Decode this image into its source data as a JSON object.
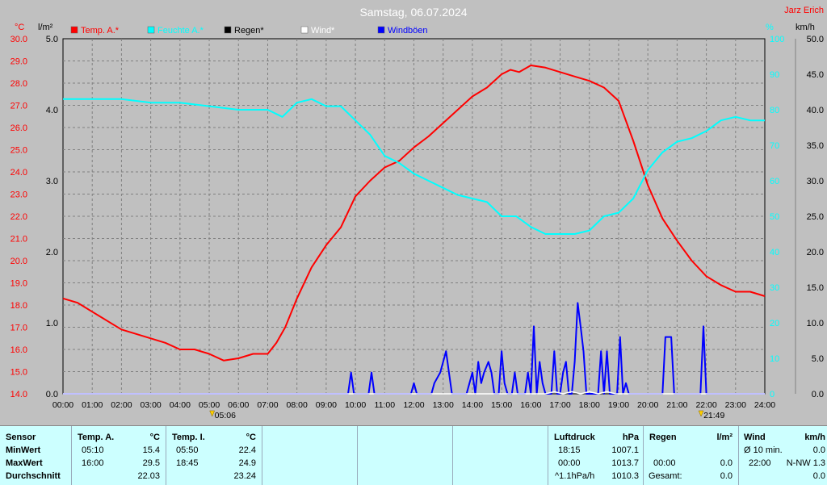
{
  "chart_data": {
    "type": "line",
    "title": "Samstag, 06.07.2024",
    "station": "Jarz Erich",
    "legend": [
      {
        "name": "Temp. A.*",
        "color": "#ff0000"
      },
      {
        "name": "Feuchte A.*",
        "color": "#00ffff"
      },
      {
        "name": "Regen*",
        "color": "#000000"
      },
      {
        "name": "Wind*",
        "color": "#ffffff"
      },
      {
        "name": "Windböen",
        "color": "#0000ff"
      }
    ],
    "axes": {
      "temp": {
        "unit": "°C",
        "min": 14.0,
        "max": 30.0,
        "ticks": [
          "14.0",
          "15.0",
          "16.0",
          "17.0",
          "18.0",
          "19.0",
          "20.0",
          "21.0",
          "22.0",
          "23.0",
          "24.0",
          "25.0",
          "26.0",
          "27.0",
          "28.0",
          "29.0",
          "30.0"
        ]
      },
      "rain": {
        "unit": "l/m²",
        "min": 0.0,
        "max": 5.0,
        "ticks": [
          "0.0",
          "1.0",
          "2.0",
          "3.0",
          "4.0",
          "5.0"
        ]
      },
      "humidity": {
        "unit": "%",
        "min": 0,
        "max": 100,
        "ticks": [
          "0",
          "10",
          "20",
          "30",
          "40",
          "50",
          "60",
          "70",
          "80",
          "90",
          "100"
        ]
      },
      "wind": {
        "unit": "km/h",
        "min": 0.0,
        "max": 50.0,
        "ticks": [
          "0.0",
          "5.0",
          "10.0",
          "15.0",
          "20.0",
          "25.0",
          "30.0",
          "35.0",
          "40.0",
          "45.0",
          "50.0"
        ]
      },
      "time_ticks": [
        "00:00",
        "01:00",
        "02:00",
        "03:00",
        "04:00",
        "05:00",
        "06:00",
        "07:00",
        "08:00",
        "09:00",
        "10:00",
        "11:00",
        "12:00",
        "13:00",
        "14:00",
        "15:00",
        "16:00",
        "17:00",
        "18:00",
        "19:00",
        "20:00",
        "21:00",
        "22:00",
        "23:00",
        "24:00"
      ]
    },
    "sun_markers": [
      {
        "label": "05:06",
        "time": 5.1
      },
      {
        "label": "21:49",
        "time": 21.82
      }
    ],
    "series": [
      {
        "name": "Temp. A.*",
        "color": "#ff0000",
        "axis": "temp",
        "x": [
          0,
          0.5,
          1,
          1.5,
          2,
          2.5,
          3,
          3.5,
          4,
          4.5,
          5,
          5.5,
          6,
          6.5,
          7,
          7.3,
          7.6,
          8,
          8.5,
          9,
          9.5,
          10,
          10.5,
          11,
          11.5,
          12,
          12.5,
          13,
          13.5,
          14,
          14.5,
          15,
          15.3,
          15.6,
          16,
          16.5,
          17,
          17.5,
          18,
          18.5,
          19,
          19.5,
          20,
          20.5,
          21,
          21.5,
          22,
          22.5,
          23,
          23.5,
          24
        ],
        "values": [
          18.3,
          18.1,
          17.7,
          17.3,
          16.9,
          16.7,
          16.5,
          16.3,
          16.0,
          16.0,
          15.8,
          15.5,
          15.6,
          15.8,
          15.8,
          16.3,
          17.0,
          18.3,
          19.7,
          20.7,
          21.5,
          22.9,
          23.6,
          24.2,
          24.5,
          25.1,
          25.6,
          26.2,
          26.8,
          27.4,
          27.8,
          28.4,
          28.6,
          28.5,
          28.8,
          28.7,
          28.5,
          28.3,
          28.1,
          27.8,
          27.2,
          25.4,
          23.4,
          21.9,
          20.9,
          20.0,
          19.3,
          18.9,
          18.6,
          18.6,
          18.4
        ]
      },
      {
        "name": "Feuchte A.*",
        "color": "#00ffff",
        "axis": "humidity",
        "x": [
          0,
          1,
          2,
          3,
          4,
          5,
          6,
          7,
          7.5,
          8,
          8.5,
          9,
          9.5,
          10,
          10.5,
          11,
          11.5,
          12,
          12.5,
          13,
          13.5,
          14,
          14.5,
          15,
          15.5,
          16,
          16.5,
          17,
          17.5,
          18,
          18.5,
          19,
          19.5,
          20,
          20.5,
          21,
          21.5,
          22,
          22.5,
          23,
          23.5,
          24
        ],
        "values": [
          83,
          83,
          83,
          82,
          82,
          81,
          80,
          80,
          78,
          82,
          83,
          81,
          81,
          77,
          73,
          67,
          65,
          62,
          60,
          58,
          56,
          55,
          54,
          50,
          50,
          47,
          45,
          45,
          45,
          46,
          50,
          51,
          55,
          63,
          68,
          71,
          72,
          74,
          77,
          78,
          77,
          77
        ]
      },
      {
        "name": "Windböen",
        "color": "#0000ff",
        "axis": "wind",
        "x": [
          0,
          9.75,
          9.85,
          9.95,
          10.45,
          10.55,
          10.65,
          11.9,
          12.0,
          12.1,
          12.6,
          12.7,
          12.9,
          13.1,
          13.2,
          13.3,
          13.8,
          13.9,
          14.0,
          14.1,
          14.2,
          14.3,
          14.4,
          14.55,
          14.65,
          14.75,
          14.9,
          15.0,
          15.1,
          15.2,
          15.35,
          15.45,
          15.55,
          15.8,
          15.9,
          16.0,
          16.1,
          16.2,
          16.3,
          16.4,
          16.5,
          16.6,
          16.7,
          16.8,
          16.9,
          17.0,
          17.1,
          17.2,
          17.3,
          17.4,
          17.5,
          17.6,
          17.7,
          17.8,
          17.9,
          18.0,
          18.1,
          18.2,
          18.3,
          18.4,
          18.5,
          18.6,
          18.7,
          18.8,
          18.95,
          19.05,
          19.15,
          19.25,
          19.35,
          20.3,
          20.4,
          20.5,
          20.6,
          20.7,
          20.8,
          20.9,
          21.0,
          21.6,
          21.7,
          21.8,
          21.9,
          22.0,
          22.1,
          24
        ],
        "values": [
          0,
          0,
          3,
          0,
          0,
          3,
          0,
          0,
          1.5,
          0,
          0,
          1.5,
          3,
          6,
          3,
          0,
          0,
          1.5,
          3,
          0,
          4.5,
          1.5,
          3,
          4.5,
          3,
          0,
          0,
          6,
          1.5,
          0,
          0,
          3,
          0,
          0,
          3,
          0,
          9.5,
          0,
          4.5,
          1.5,
          0,
          0,
          0,
          6,
          0,
          0,
          3,
          4.5,
          0,
          0,
          4.5,
          12.8,
          9.5,
          6,
          0,
          0,
          0,
          0,
          0,
          6,
          0,
          6,
          0,
          0,
          0,
          8,
          0,
          1.5,
          0,
          0,
          0,
          0,
          8,
          8,
          8,
          0,
          0,
          0,
          0,
          0,
          9.5,
          0,
          0,
          0
        ]
      },
      {
        "name": "Wind*",
        "color": "#ffffff",
        "axis": "wind",
        "x": [
          0,
          16.5,
          16.8,
          17.1,
          17.4,
          17.7,
          18.0,
          18.3,
          18.6,
          18.9,
          19.2,
          24
        ],
        "values": [
          0,
          0,
          0.3,
          0,
          0.3,
          0,
          0.3,
          0,
          0.3,
          0,
          0,
          0
        ]
      }
    ]
  },
  "table": {
    "sensor": {
      "header": "Sensor",
      "rows": [
        "MinWert",
        "MaxWert",
        "Durchschnitt"
      ]
    },
    "temp_a": {
      "header": "Temp. A.",
      "unit": "°C",
      "rows": [
        [
          "05:10",
          "15.4"
        ],
        [
          "16:00",
          "29.5"
        ],
        [
          "",
          "22.03"
        ]
      ]
    },
    "temp_i": {
      "header": "Temp. I.",
      "unit": "°C",
      "rows": [
        [
          "05:50",
          "22.4"
        ],
        [
          "18:45",
          "24.9"
        ],
        [
          "",
          "23.24"
        ]
      ]
    },
    "luftdruck": {
      "header": "Luftdruck",
      "unit": "hPa",
      "rows": [
        [
          "18:15",
          "1007.1"
        ],
        [
          "00:00",
          "1013.7"
        ],
        [
          "^1.1hPa/h",
          "1010.3"
        ]
      ]
    },
    "regen": {
      "header": "Regen",
      "unit": "l/m²",
      "rows": [
        [
          "",
          ""
        ],
        [
          "00:00",
          "0.0"
        ],
        [
          "Gesamt:",
          "0.0"
        ]
      ]
    },
    "wind": {
      "header": "Wind",
      "unit": "km/h",
      "rows": [
        [
          "Ø 10 min.",
          "0.0"
        ],
        [
          "22:00",
          "N-NW 1.3"
        ],
        [
          "",
          "0.0"
        ]
      ]
    }
  }
}
